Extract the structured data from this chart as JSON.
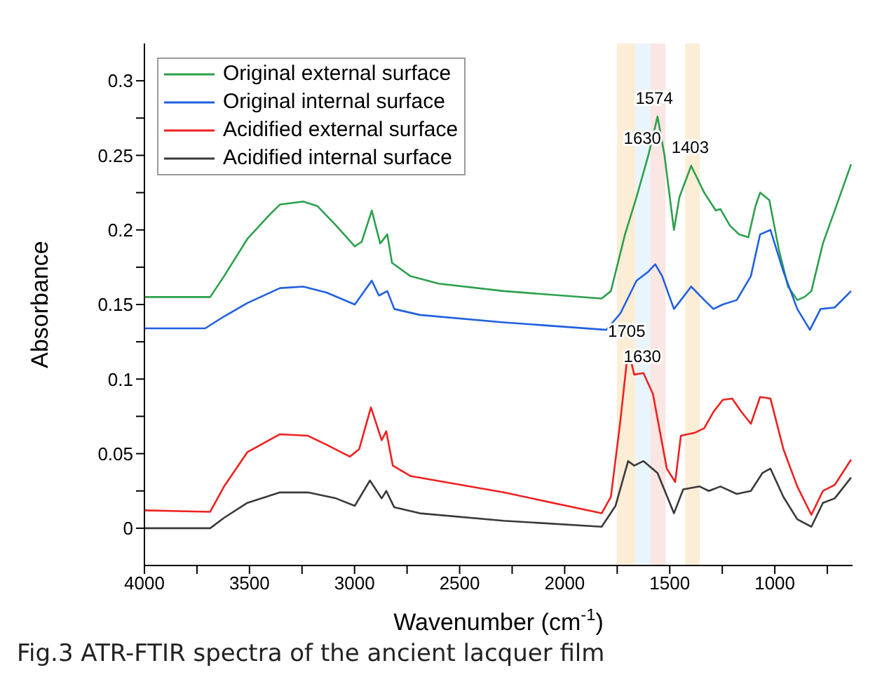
{
  "chart_data": {
    "type": "line",
    "xlabel": "Wavenumber (cm$^{-1}$)",
    "ylabel": "Absorbance",
    "xlim": [
      4000,
      630
    ],
    "xticks": [
      4000,
      {
        "value": 3750,
        "label": null
      },
      3500,
      {
        "value": 3250,
        "label": null
      },
      3000,
      {
        "value": 2750,
        "label": null
      },
      2500,
      {
        "value": 2250,
        "label": null
      },
      2000,
      {
        "value": 1750,
        "label": null
      },
      1500,
      {
        "value": 1250,
        "label": null
      },
      1000,
      {
        "value": 750,
        "label": null
      }
    ],
    "ylim": [
      -0.025,
      0.325
    ],
    "yticks": [
      0,
      {
        "value": 0.025,
        "label": null
      },
      0.05,
      {
        "value": 0.075,
        "label": null
      },
      0.1,
      {
        "value": 0.125,
        "label": null
      },
      0.15,
      {
        "value": 0.175,
        "label": null
      },
      0.2,
      {
        "value": 0.225,
        "label": null
      },
      0.25,
      {
        "value": 0.275,
        "label": null
      },
      0.3
    ],
    "grid": false,
    "legend": "top left",
    "marker": "none",
    "line_style": "solid",
    "series": [
      {
        "name": "Original external surface",
        "color": "#2ca04c",
        "x": [
          4000,
          3687,
          3621,
          3510,
          3399,
          3355,
          3244,
          3177,
          3088,
          2999,
          2966,
          2918,
          2878,
          2844,
          2822,
          2734,
          2600,
          2290,
          1824,
          1780,
          1713,
          1658,
          1602,
          1558,
          1525,
          1480,
          1454,
          1398,
          1336,
          1281,
          1259,
          1214,
          1170,
          1126,
          1092,
          1070,
          1026,
          981,
          937,
          893,
          859,
          826,
          771,
          715,
          637
        ],
        "values": [
          0.155,
          0.155,
          0.169,
          0.194,
          0.211,
          0.217,
          0.219,
          0.216,
          0.203,
          0.189,
          0.192,
          0.213,
          0.191,
          0.197,
          0.178,
          0.169,
          0.164,
          0.159,
          0.154,
          0.159,
          0.197,
          0.222,
          0.25,
          0.276,
          0.25,
          0.2,
          0.222,
          0.243,
          0.225,
          0.213,
          0.214,
          0.203,
          0.197,
          0.195,
          0.216,
          0.225,
          0.22,
          0.187,
          0.162,
          0.153,
          0.155,
          0.159,
          0.191,
          0.213,
          0.244
        ]
      },
      {
        "name": "Original internal surface",
        "color": "#2060e0",
        "x": [
          4000,
          3711,
          3621,
          3510,
          3355,
          3244,
          3133,
          2999,
          2918,
          2884,
          2844,
          2811,
          2689,
          2290,
          1802,
          1735,
          1658,
          1602,
          1569,
          1536,
          1480,
          1447,
          1398,
          1336,
          1292,
          1248,
          1181,
          1114,
          1070,
          1021,
          959,
          893,
          833,
          782,
          715,
          637
        ],
        "values": [
          0.134,
          0.134,
          0.142,
          0.151,
          0.161,
          0.162,
          0.158,
          0.15,
          0.166,
          0.156,
          0.159,
          0.147,
          0.143,
          0.138,
          0.133,
          0.144,
          0.166,
          0.172,
          0.177,
          0.169,
          0.147,
          0.153,
          0.162,
          0.153,
          0.147,
          0.15,
          0.153,
          0.169,
          0.197,
          0.2,
          0.172,
          0.147,
          0.133,
          0.147,
          0.148,
          0.159
        ]
      },
      {
        "name": "Acidified external surface",
        "color": "#f02020",
        "x": [
          4000,
          3687,
          3621,
          3510,
          3355,
          3222,
          3133,
          3022,
          2978,
          2922,
          2871,
          2849,
          2818,
          2734,
          2290,
          1824,
          1780,
          1735,
          1698,
          1669,
          1625,
          1580,
          1514,
          1474,
          1447,
          1381,
          1336,
          1292,
          1248,
          1203,
          1159,
          1114,
          1070,
          1021,
          959,
          893,
          826,
          771,
          715,
          637
        ],
        "values": [
          0.012,
          0.011,
          0.028,
          0.051,
          0.063,
          0.062,
          0.056,
          0.048,
          0.053,
          0.081,
          0.059,
          0.065,
          0.042,
          0.035,
          0.024,
          0.01,
          0.021,
          0.072,
          0.12,
          0.103,
          0.104,
          0.09,
          0.04,
          0.031,
          0.062,
          0.064,
          0.067,
          0.078,
          0.086,
          0.087,
          0.078,
          0.07,
          0.088,
          0.087,
          0.053,
          0.028,
          0.009,
          0.025,
          0.029,
          0.046
        ]
      },
      {
        "name": "Acidified internal surface",
        "color": "#3a3a3a",
        "x": [
          4000,
          3687,
          3621,
          3510,
          3355,
          3222,
          3088,
          2999,
          2927,
          2871,
          2849,
          2811,
          2689,
          2290,
          1824,
          1758,
          1698,
          1669,
          1625,
          1558,
          1480,
          1436,
          1358,
          1314,
          1259,
          1181,
          1114,
          1059,
          1021,
          959,
          893,
          826,
          771,
          715,
          637
        ],
        "values": [
          0,
          0,
          0.007,
          0.017,
          0.024,
          0.024,
          0.02,
          0.015,
          0.032,
          0.02,
          0.025,
          0.014,
          0.01,
          0.005,
          0.001,
          0.015,
          0.045,
          0.042,
          0.045,
          0.037,
          0.01,
          0.026,
          0.028,
          0.025,
          0.028,
          0.023,
          0.025,
          0.037,
          0.04,
          0.021,
          0.006,
          0.001,
          0.017,
          0.02,
          0.034
        ]
      }
    ],
    "bands": [
      {
        "axis": "x",
        "from": 1663,
        "to": 1592,
        "color": "#e3f2fb"
      },
      {
        "axis": "x",
        "from": 1592,
        "to": 1520,
        "color": "#f9e0db"
      },
      {
        "axis": "x",
        "from": 1427,
        "to": 1357,
        "color": "#fbe9cc"
      },
      {
        "axis": "x",
        "from": 1751,
        "to": 1663,
        "color": "#fbe9cc"
      }
    ],
    "annotations": [
      {
        "text": "1574",
        "x": 1574,
        "y": 0.277
      },
      {
        "text": "1630",
        "x": 1630,
        "y": 0.25
      },
      {
        "text": "1403",
        "x": 1403,
        "y": 0.244
      },
      {
        "text": "1705",
        "x": 1705,
        "y": 0.121
      },
      {
        "text": "1630",
        "x": 1630,
        "y": 0.104
      },
      "Fig.3 ATR-FTIR spectra of the ancient lacquer film"
    ]
  }
}
